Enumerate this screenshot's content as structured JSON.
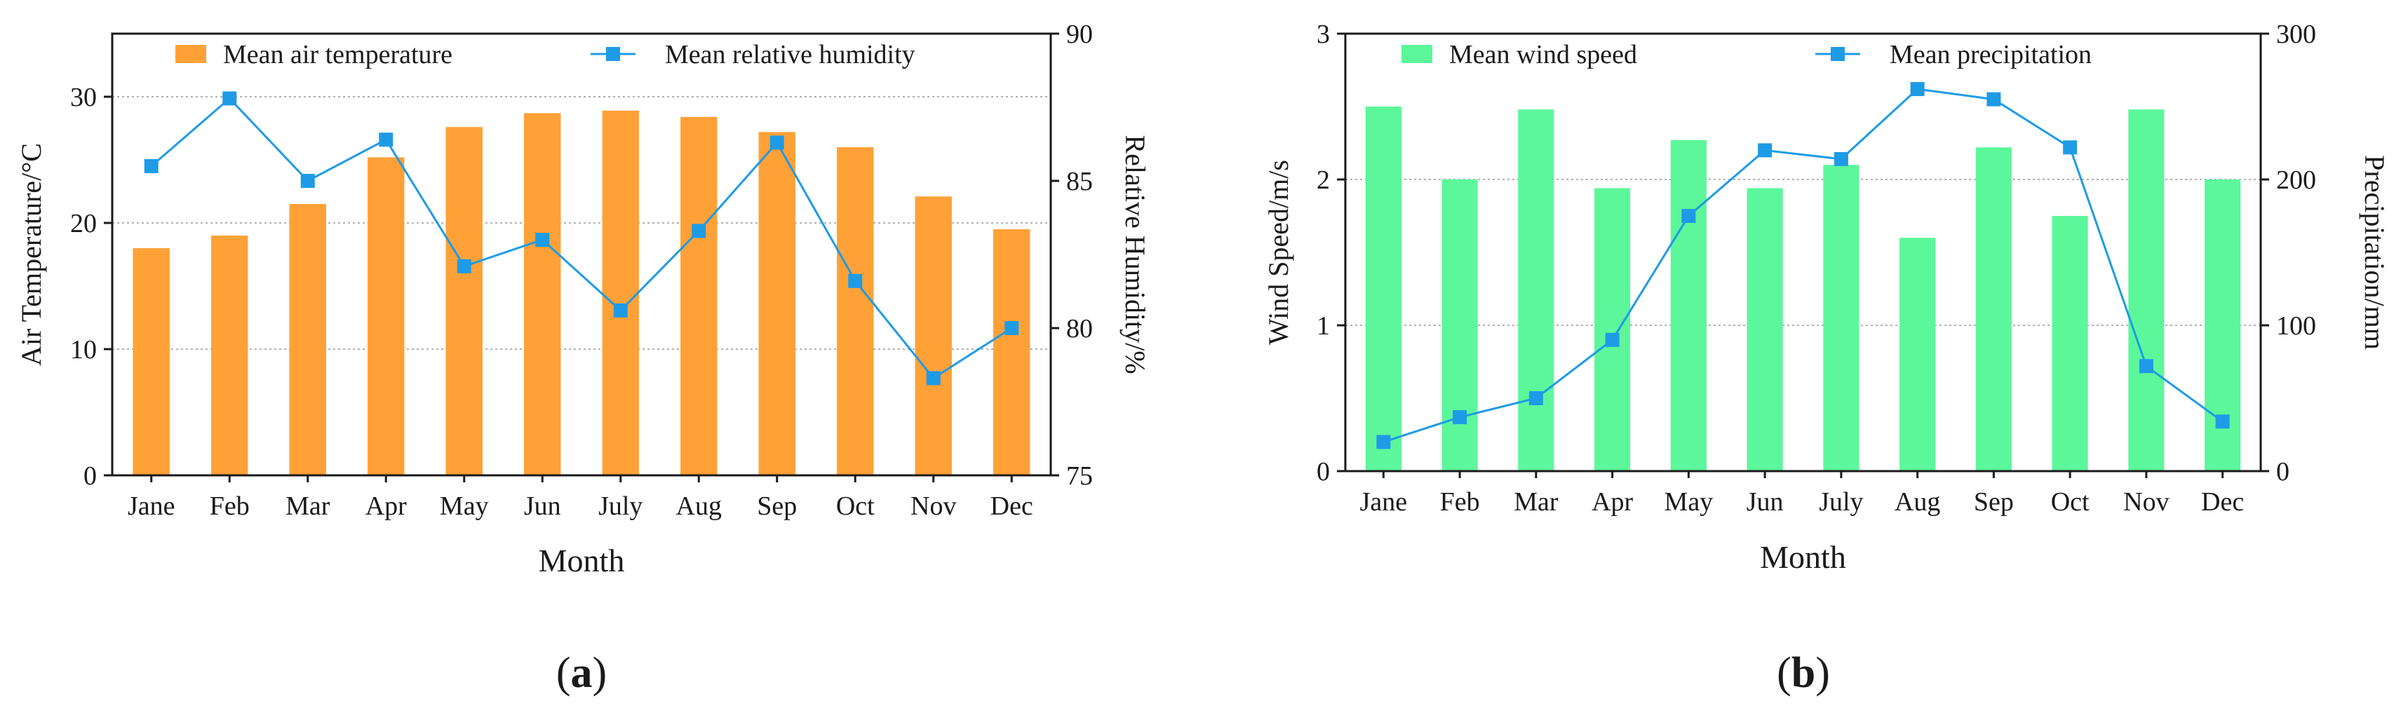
{
  "chart_data": [
    {
      "type": "bar",
      "panel_label": "a",
      "categories": [
        "Jane",
        "Feb",
        "Mar",
        "Apr",
        "May",
        "Jun",
        "July",
        "Aug",
        "Sep",
        "Oct",
        "Nov",
        "Dec"
      ],
      "xlabel": "Month",
      "ylabel": "Air Temperature/°C",
      "y2label": "Relative Humidity/%",
      "ylim": [
        0,
        35
      ],
      "yticks": [
        0,
        10,
        20,
        30
      ],
      "y2lim": [
        75,
        90
      ],
      "y2ticks": [
        75,
        80,
        85,
        90
      ],
      "grid": true,
      "legend_position": "top",
      "series": [
        {
          "name": "Mean air temperature",
          "kind": "bar",
          "axis": "left",
          "color": "#FFA137",
          "values": [
            18.0,
            19.0,
            21.5,
            25.2,
            27.6,
            28.7,
            28.9,
            28.4,
            27.2,
            26.0,
            22.1,
            19.5
          ]
        },
        {
          "name": "Mean relative humidity",
          "kind": "line",
          "axis": "right",
          "color": "#1E9BE6",
          "values": [
            85.5,
            87.8,
            85.0,
            86.4,
            82.1,
            83.0,
            80.6,
            83.3,
            86.3,
            81.6,
            78.3,
            80.0
          ]
        }
      ]
    },
    {
      "type": "bar",
      "panel_label": "b",
      "categories": [
        "Jane",
        "Feb",
        "Mar",
        "Apr",
        "May",
        "Jun",
        "July",
        "Aug",
        "Sep",
        "Oct",
        "Nov",
        "Dec"
      ],
      "xlabel": "Month",
      "ylabel": "Wind Speed/m/s",
      "y2label": "Precipitation/mm",
      "ylim": [
        0,
        3
      ],
      "yticks": [
        0,
        1,
        2,
        3
      ],
      "y2lim": [
        0,
        300
      ],
      "y2ticks": [
        0,
        100,
        200,
        300
      ],
      "grid": true,
      "legend_position": "top",
      "series": [
        {
          "name": "Mean wind speed",
          "kind": "bar",
          "axis": "left",
          "color": "#5CF79B",
          "values": [
            2.5,
            2.0,
            2.48,
            1.94,
            2.27,
            1.94,
            2.1,
            1.6,
            2.22,
            1.75,
            2.48,
            2.0
          ]
        },
        {
          "name": "Mean precipitation",
          "kind": "line",
          "axis": "right",
          "color": "#1E9BE6",
          "values": [
            20,
            37,
            50,
            90,
            175,
            220,
            214,
            262,
            255,
            222,
            72,
            34
          ]
        }
      ]
    }
  ]
}
